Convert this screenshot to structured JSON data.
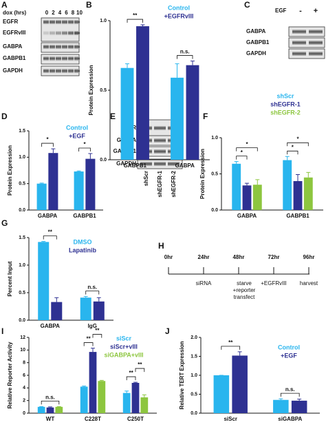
{
  "panel_labels": [
    "A",
    "B",
    "C",
    "D",
    "E",
    "F",
    "G",
    "H",
    "I",
    "J"
  ],
  "blot_a": {
    "header": "dox (hrs)",
    "lanes": [
      "0",
      "2",
      "4",
      "6",
      "8",
      "10"
    ],
    "rows": [
      "EGFR",
      "EGFRvIII",
      "GABPA",
      "GABPB1",
      "GAPDH"
    ]
  },
  "blot_c": {
    "header": "EGF",
    "lanes": [
      "-",
      "+"
    ],
    "rows": [
      "GABPA",
      "GABPB1",
      "GAPDH"
    ]
  },
  "blot_e": {
    "rows": [
      "EGFR",
      "GABPA",
      "GABPB1",
      "GAPDH"
    ],
    "lanes": [
      "shScr",
      "shEGFR-1",
      "shEGFR-2"
    ]
  },
  "timeline": {
    "times": [
      "0hr",
      "24hr",
      "48hr",
      "72hr",
      "96hr"
    ],
    "events": [
      [
        "siRNA"
      ],
      [
        "starve",
        "+reporter",
        "transfect"
      ],
      [
        "+EGFRvIII"
      ],
      [
        "harvest"
      ]
    ]
  },
  "chart_data": [
    {
      "type": "bar",
      "ylabel": "Protein Expression",
      "categories": [
        "GABPB1",
        "GABPA"
      ],
      "series": [
        {
          "name": "Control",
          "color": "#29b5ee",
          "values": [
            0.66,
            0.59
          ],
          "errors": [
            0.03,
            0.1
          ]
        },
        {
          "name": "+EGFRvIII",
          "color": "#2e3192",
          "values": [
            0.96,
            0.68
          ],
          "errors": [
            0.01,
            0.03
          ]
        }
      ],
      "ylim": [
        0,
        1.0
      ],
      "yticks": [
        {
          "value": 0,
          "label": "0.0"
        },
        0.5,
        {
          "value": 1,
          "label": "1.0"
        }
      ],
      "annotations": [
        "**",
        "n.s."
      ]
    },
    {
      "type": "bar",
      "ylabel": "Protein Expression",
      "categories": [
        "GABPA",
        "GABPB1"
      ],
      "series": [
        {
          "name": "Control",
          "color": "#29b5ee",
          "values": [
            0.5,
            0.73
          ],
          "errors": [
            0.01,
            0.01
          ]
        },
        {
          "name": "+EGF",
          "color": "#2e3192",
          "values": [
            1.08,
            0.97
          ],
          "errors": [
            0.08,
            0.1
          ]
        }
      ],
      "ylim": [
        0,
        1.5
      ],
      "yticks": [
        {
          "value": 0,
          "label": "0.0"
        },
        0.5,
        {
          "value": 1,
          "label": "1.0"
        },
        1.5
      ],
      "annotations": [
        "*",
        "*"
      ]
    },
    {
      "type": "bar",
      "ylabel": "Protein Expression",
      "categories": [
        "GABPA",
        "GABPB1"
      ],
      "series": [
        {
          "name": "shScr",
          "color": "#29b5ee",
          "values": [
            0.64,
            0.69
          ],
          "errors": [
            0.03,
            0.05
          ]
        },
        {
          "name": "shEGFR-1",
          "color": "#2e3192",
          "values": [
            0.34,
            0.4
          ],
          "errors": [
            0.03,
            0.09
          ]
        },
        {
          "name": "shEGFR-2",
          "color": "#8dc63f",
          "values": [
            0.35,
            0.45
          ],
          "errors": [
            0.07,
            0.07
          ]
        }
      ],
      "ylim": [
        0,
        1.0
      ],
      "yticks": [
        {
          "value": 0,
          "label": "0.0"
        },
        0.5,
        {
          "value": 1,
          "label": "1.0"
        }
      ],
      "annotations": [
        "*",
        "*",
        "*",
        "*"
      ]
    },
    {
      "type": "bar",
      "ylabel": "Percent Input",
      "categories": [
        "GABPA",
        "IgG"
      ],
      "series": [
        {
          "name": "DMSO",
          "color": "#29b5ee",
          "values": [
            1.42,
            0.41
          ],
          "errors": [
            0.01,
            0.02
          ]
        },
        {
          "name": "Lapatinib",
          "color": "#2e3192",
          "values": [
            0.33,
            0.34
          ],
          "errors": [
            0.08,
            0.07
          ]
        }
      ],
      "ylim": [
        0,
        1.5
      ],
      "yticks": [
        {
          "value": 0,
          "label": "0.0"
        },
        0.5,
        {
          "value": 1,
          "label": "1.0"
        },
        1.5
      ],
      "annotations": [
        "**",
        "n.s."
      ]
    },
    {
      "type": "bar",
      "ylabel": "Relative Reporter Activity",
      "categories": [
        "WT",
        "C228T",
        "C250T"
      ],
      "series": [
        {
          "name": "siScr",
          "color": "#29b5ee",
          "values": [
            1.0,
            4.2,
            3.2
          ],
          "errors": [
            0.05,
            0.1,
            0.3
          ]
        },
        {
          "name": "siScr+vIII",
          "color": "#2e3192",
          "values": [
            0.9,
            9.7,
            4.8
          ],
          "errors": [
            0.1,
            0.6,
            0.1
          ]
        },
        {
          "name": "siGABPA+vIII",
          "color": "#8dc63f",
          "values": [
            1.0,
            5.1,
            2.5
          ],
          "errors": [
            0.05,
            0.1,
            0.4
          ]
        }
      ],
      "ylim": [
        0,
        12
      ],
      "yticks": [
        0,
        2,
        4,
        6,
        8,
        10,
        12
      ],
      "annotations": [
        "n.s.",
        "**",
        "**",
        "**",
        "**"
      ]
    },
    {
      "type": "bar",
      "ylabel": "Relative TERT Expression",
      "categories": [
        "siScr",
        "siGABPA"
      ],
      "series": [
        {
          "name": "Control",
          "color": "#29b5ee",
          "values": [
            1.0,
            0.35
          ],
          "errors": [
            0.0,
            0.03
          ]
        },
        {
          "name": "+EGF",
          "color": "#2e3192",
          "values": [
            1.52,
            0.33
          ],
          "errors": [
            0.1,
            0.04
          ]
        }
      ],
      "ylim": [
        0,
        2.0
      ],
      "yticks": [
        {
          "value": 0,
          "label": "0.0"
        },
        0.5,
        {
          "value": 1,
          "label": "1.0"
        },
        1.5,
        {
          "value": 2,
          "label": "2.0"
        }
      ],
      "annotations": [
        "**",
        "n.s."
      ]
    }
  ]
}
